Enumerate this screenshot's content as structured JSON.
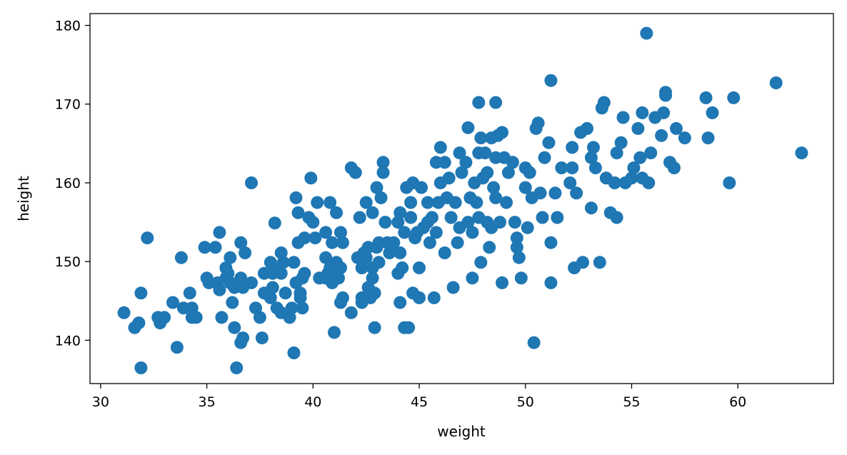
{
  "chart_data": {
    "type": "scatter",
    "title": "",
    "xlabel": "weight",
    "ylabel": "height",
    "xlim": [
      29.5,
      64.5
    ],
    "ylim": [
      134.5,
      181.5
    ],
    "xticks": [
      30,
      35,
      40,
      45,
      50,
      55,
      60
    ],
    "yticks": [
      140,
      150,
      160,
      170,
      180
    ],
    "grid": false,
    "legend": "none",
    "marker_color": "#1f77b4",
    "points": [
      [
        31.1,
        143.5
      ],
      [
        31.6,
        141.6
      ],
      [
        31.8,
        142.2
      ],
      [
        31.9,
        136.5
      ],
      [
        31.9,
        146.0
      ],
      [
        32.2,
        153.0
      ],
      [
        32.7,
        142.9
      ],
      [
        32.8,
        142.2
      ],
      [
        33.0,
        142.9
      ],
      [
        33.4,
        144.8
      ],
      [
        33.6,
        139.1
      ],
      [
        33.8,
        150.5
      ],
      [
        33.9,
        144.1
      ],
      [
        34.2,
        146.0
      ],
      [
        34.3,
        144.1
      ],
      [
        34.3,
        142.9
      ],
      [
        34.5,
        142.9
      ],
      [
        34.9,
        151.8
      ],
      [
        35.0,
        147.9
      ],
      [
        35.1,
        147.3
      ],
      [
        35.4,
        151.8
      ],
      [
        35.5,
        147.3
      ],
      [
        35.6,
        146.4
      ],
      [
        35.6,
        153.7
      ],
      [
        35.7,
        142.9
      ],
      [
        35.9,
        149.2
      ],
      [
        35.9,
        147.9
      ],
      [
        36.0,
        148.5
      ],
      [
        36.1,
        150.5
      ],
      [
        36.1,
        147.3
      ],
      [
        36.2,
        144.8
      ],
      [
        36.3,
        146.7
      ],
      [
        36.3,
        141.6
      ],
      [
        36.4,
        136.5
      ],
      [
        36.6,
        152.4
      ],
      [
        36.6,
        139.7
      ],
      [
        36.6,
        147.9
      ],
      [
        36.7,
        146.7
      ],
      [
        36.7,
        140.3
      ],
      [
        36.8,
        151.1
      ],
      [
        37.1,
        147.3
      ],
      [
        37.1,
        160.0
      ],
      [
        37.3,
        144.1
      ],
      [
        37.5,
        142.9
      ],
      [
        37.6,
        140.3
      ],
      [
        37.7,
        146.0
      ],
      [
        37.7,
        148.5
      ],
      [
        38.0,
        149.9
      ],
      [
        38.0,
        145.4
      ],
      [
        38.1,
        148.5
      ],
      [
        38.1,
        146.7
      ],
      [
        38.2,
        154.9
      ],
      [
        38.3,
        144.1
      ],
      [
        38.4,
        149.2
      ],
      [
        38.5,
        143.5
      ],
      [
        38.5,
        148.5
      ],
      [
        38.5,
        151.1
      ],
      [
        38.6,
        149.9
      ],
      [
        38.7,
        146.0
      ],
      [
        38.9,
        142.9
      ],
      [
        39.0,
        144.1
      ],
      [
        39.1,
        138.4
      ],
      [
        39.1,
        149.9
      ],
      [
        39.2,
        147.3
      ],
      [
        39.2,
        158.1
      ],
      [
        39.3,
        156.2
      ],
      [
        39.3,
        152.4
      ],
      [
        39.4,
        146.0
      ],
      [
        39.4,
        145.4
      ],
      [
        39.5,
        144.1
      ],
      [
        39.5,
        147.9
      ],
      [
        39.6,
        153.0
      ],
      [
        39.6,
        148.5
      ],
      [
        39.8,
        155.6
      ],
      [
        39.9,
        160.6
      ],
      [
        40.0,
        155.0
      ],
      [
        40.1,
        153.0
      ],
      [
        40.2,
        157.5
      ],
      [
        40.3,
        147.9
      ],
      [
        40.6,
        153.7
      ],
      [
        40.6,
        147.9
      ],
      [
        40.6,
        150.5
      ],
      [
        40.7,
        148.5
      ],
      [
        40.8,
        157.5
      ],
      [
        40.8,
        149.2
      ],
      [
        40.9,
        147.3
      ],
      [
        40.9,
        152.4
      ],
      [
        41.0,
        148.5
      ],
      [
        41.0,
        141.0
      ],
      [
        41.1,
        149.9
      ],
      [
        41.1,
        156.2
      ],
      [
        41.2,
        147.9
      ],
      [
        41.3,
        153.7
      ],
      [
        41.3,
        144.8
      ],
      [
        41.3,
        149.2
      ],
      [
        41.4,
        145.4
      ],
      [
        41.4,
        152.4
      ],
      [
        41.8,
        143.5
      ],
      [
        41.8,
        161.9
      ],
      [
        42.0,
        161.3
      ],
      [
        42.1,
        150.5
      ],
      [
        42.2,
        155.6
      ],
      [
        42.3,
        149.2
      ],
      [
        42.3,
        145.4
      ],
      [
        42.3,
        144.8
      ],
      [
        42.4,
        151.1
      ],
      [
        42.5,
        157.5
      ],
      [
        42.5,
        150.5
      ],
      [
        42.6,
        151.8
      ],
      [
        42.6,
        146.7
      ],
      [
        42.7,
        145.4
      ],
      [
        42.8,
        156.2
      ],
      [
        42.8,
        147.9
      ],
      [
        42.8,
        149.2
      ],
      [
        42.9,
        146.0
      ],
      [
        42.9,
        141.6
      ],
      [
        43.0,
        151.8
      ],
      [
        43.0,
        159.4
      ],
      [
        43.1,
        152.4
      ],
      [
        43.1,
        149.9
      ],
      [
        43.2,
        158.1
      ],
      [
        43.3,
        162.6
      ],
      [
        43.3,
        161.3
      ],
      [
        43.4,
        155.0
      ],
      [
        43.5,
        152.4
      ],
      [
        43.6,
        151.1
      ],
      [
        43.8,
        152.4
      ],
      [
        44.0,
        155.0
      ],
      [
        44.0,
        148.5
      ],
      [
        44.1,
        151.1
      ],
      [
        44.1,
        156.2
      ],
      [
        44.1,
        144.8
      ],
      [
        44.2,
        149.2
      ],
      [
        44.3,
        153.7
      ],
      [
        44.3,
        141.6
      ],
      [
        44.4,
        159.4
      ],
      [
        44.5,
        141.6
      ],
      [
        44.6,
        155.6
      ],
      [
        44.6,
        157.5
      ],
      [
        44.7,
        160.0
      ],
      [
        44.7,
        146.0
      ],
      [
        44.8,
        153.0
      ],
      [
        44.9,
        153.7
      ],
      [
        45.0,
        145.4
      ],
      [
        45.0,
        149.2
      ],
      [
        45.1,
        159.4
      ],
      [
        45.2,
        154.3
      ],
      [
        45.4,
        157.5
      ],
      [
        45.4,
        155.0
      ],
      [
        45.5,
        152.4
      ],
      [
        45.6,
        155.6
      ],
      [
        45.7,
        145.4
      ],
      [
        45.8,
        162.6
      ],
      [
        45.8,
        153.7
      ],
      [
        45.9,
        157.5
      ],
      [
        46.0,
        160.0
      ],
      [
        46.0,
        164.5
      ],
      [
        46.2,
        151.1
      ],
      [
        46.2,
        162.6
      ],
      [
        46.3,
        158.1
      ],
      [
        46.4,
        160.6
      ],
      [
        46.5,
        155.6
      ],
      [
        46.6,
        146.7
      ],
      [
        46.7,
        157.5
      ],
      [
        46.8,
        152.4
      ],
      [
        46.9,
        163.8
      ],
      [
        46.9,
        154.3
      ],
      [
        47.0,
        161.3
      ],
      [
        47.2,
        162.6
      ],
      [
        47.3,
        167.0
      ],
      [
        47.3,
        155.0
      ],
      [
        47.4,
        158.1
      ],
      [
        47.5,
        153.7
      ],
      [
        47.5,
        147.9
      ],
      [
        47.6,
        160.0
      ],
      [
        47.7,
        157.5
      ],
      [
        47.8,
        163.8
      ],
      [
        47.8,
        170.2
      ],
      [
        47.8,
        155.6
      ],
      [
        47.9,
        165.7
      ],
      [
        47.9,
        149.9
      ],
      [
        48.0,
        160.6
      ],
      [
        48.1,
        163.8
      ],
      [
        48.2,
        161.3
      ],
      [
        48.2,
        155.0
      ],
      [
        48.3,
        151.8
      ],
      [
        48.4,
        154.3
      ],
      [
        48.4,
        165.7
      ],
      [
        48.5,
        159.4
      ],
      [
        48.6,
        163.2
      ],
      [
        48.6,
        170.2
      ],
      [
        48.6,
        158.1
      ],
      [
        48.7,
        166.0
      ],
      [
        48.8,
        155.0
      ],
      [
        48.9,
        166.4
      ],
      [
        48.9,
        147.3
      ],
      [
        49.0,
        163.2
      ],
      [
        49.1,
        157.5
      ],
      [
        49.2,
        161.3
      ],
      [
        49.4,
        162.6
      ],
      [
        49.5,
        155.0
      ],
      [
        49.6,
        153.0
      ],
      [
        49.6,
        151.8
      ],
      [
        49.7,
        150.5
      ],
      [
        49.8,
        147.9
      ],
      [
        50.0,
        159.4
      ],
      [
        50.0,
        161.9
      ],
      [
        50.1,
        154.3
      ],
      [
        50.2,
        161.3
      ],
      [
        50.3,
        158.1
      ],
      [
        50.4,
        139.7
      ],
      [
        50.5,
        166.9
      ],
      [
        50.6,
        167.6
      ],
      [
        50.7,
        158.7
      ],
      [
        50.8,
        155.6
      ],
      [
        50.9,
        163.2
      ],
      [
        51.1,
        165.1
      ],
      [
        51.2,
        173.0
      ],
      [
        51.2,
        152.4
      ],
      [
        51.2,
        147.3
      ],
      [
        51.4,
        158.7
      ],
      [
        51.5,
        155.6
      ],
      [
        51.7,
        161.9
      ],
      [
        52.1,
        160.0
      ],
      [
        52.2,
        164.5
      ],
      [
        52.2,
        161.9
      ],
      [
        52.3,
        149.2
      ],
      [
        52.4,
        158.7
      ],
      [
        52.6,
        166.4
      ],
      [
        52.7,
        149.9
      ],
      [
        52.9,
        166.9
      ],
      [
        53.1,
        156.8
      ],
      [
        53.1,
        163.2
      ],
      [
        53.2,
        164.5
      ],
      [
        53.3,
        161.9
      ],
      [
        53.5,
        149.9
      ],
      [
        53.6,
        169.5
      ],
      [
        53.7,
        170.2
      ],
      [
        53.8,
        160.6
      ],
      [
        54.0,
        156.2
      ],
      [
        54.2,
        160.0
      ],
      [
        54.3,
        163.8
      ],
      [
        54.3,
        155.6
      ],
      [
        54.5,
        165.1
      ],
      [
        54.6,
        168.3
      ],
      [
        54.7,
        160.0
      ],
      [
        55.0,
        160.6
      ],
      [
        55.1,
        161.9
      ],
      [
        55.3,
        166.9
      ],
      [
        55.4,
        163.2
      ],
      [
        55.5,
        160.6
      ],
      [
        55.5,
        168.9
      ],
      [
        55.7,
        179.0
      ],
      [
        55.8,
        160.0
      ],
      [
        55.9,
        163.8
      ],
      [
        56.1,
        168.3
      ],
      [
        56.4,
        166.0
      ],
      [
        56.5,
        168.9
      ],
      [
        56.6,
        171.5
      ],
      [
        56.6,
        171.1
      ],
      [
        56.8,
        162.6
      ],
      [
        57.0,
        161.9
      ],
      [
        57.1,
        166.9
      ],
      [
        57.5,
        165.7
      ],
      [
        58.5,
        170.8
      ],
      [
        58.6,
        165.7
      ],
      [
        58.8,
        168.9
      ],
      [
        59.6,
        160.0
      ],
      [
        59.8,
        170.8
      ],
      [
        61.8,
        172.7
      ],
      [
        63.0,
        163.8
      ]
    ]
  }
}
